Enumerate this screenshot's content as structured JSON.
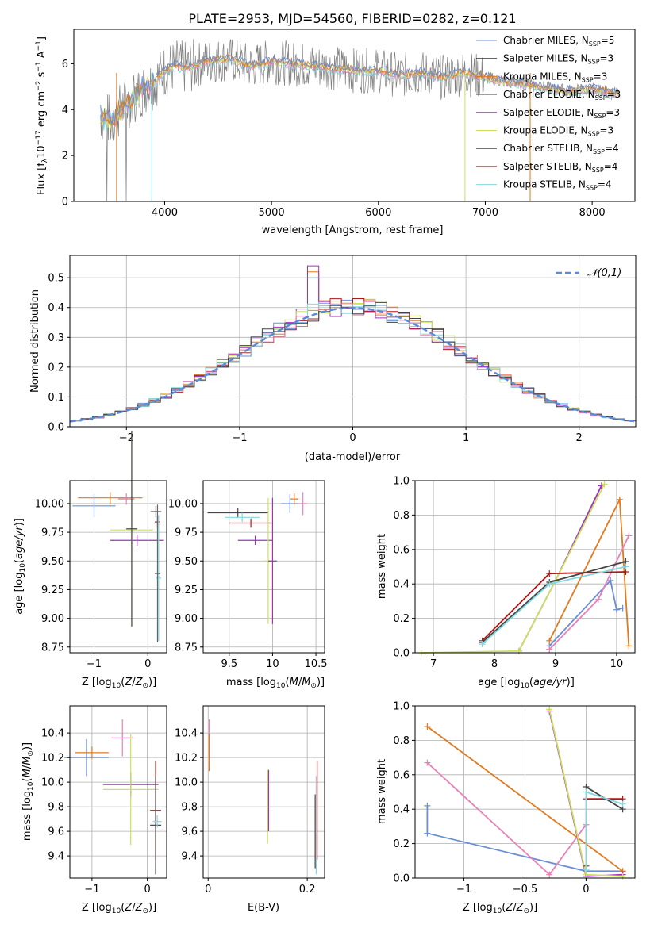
{
  "figure": {
    "title": "PLATE=2953, MJD=54560, FIBERID=0282, z=0.121"
  },
  "colors": {
    "chabrier_miles": "#6a8fd6",
    "salpeter_miles": "#303030",
    "kroupa_miles": "#e07a20",
    "chabrier_elodie": "#666666",
    "salpeter_elodie": "#a030c0",
    "kroupa_elodie": "#cce060",
    "chabrier_stelib": "#444444",
    "salpeter_stelib": "#b01818",
    "kroupa_stelib": "#80d8e0",
    "pink": "#e880b8",
    "data": "#808080"
  },
  "chart_data": [
    {
      "id": "spectrum",
      "type": "line",
      "xlabel": "wavelength [Angstrom, rest frame]",
      "ylabel": "Flux [f_λ 10^-17 erg cm^-2 s^-1 A^-1]",
      "xlim": [
        3150,
        8400
      ],
      "ylim": [
        0,
        7.5
      ],
      "xticks": [
        4000,
        5000,
        6000,
        7000,
        8000
      ],
      "yticks": [
        0,
        2,
        4,
        6
      ],
      "grid": false,
      "legend_position": "top-right",
      "legend": [
        {
          "main": "Chabrier MILES, N",
          "sub": "SSP",
          "tail": "=5"
        },
        {
          "main": "Salpeter MILES, N",
          "sub": "SSP",
          "tail": "=3"
        },
        {
          "main": "Kroupa MILES, N",
          "sub": "SSP",
          "tail": "=3"
        },
        {
          "main": "Chabrier ELODIE, N",
          "sub": "SSP",
          "tail": "=3"
        },
        {
          "main": "Salpeter ELODIE, N",
          "sub": "SSP",
          "tail": "=3"
        },
        {
          "main": "Kroupa ELODIE, N",
          "sub": "SSP",
          "tail": "=3"
        },
        {
          "main": "Chabrier STELIB, N",
          "sub": "SSP",
          "tail": "=4"
        },
        {
          "main": "Salpeter STELIB, N",
          "sub": "SSP",
          "tail": "=4"
        },
        {
          "main": "Kroupa STELIB, N",
          "sub": "SSP",
          "tail": "=4"
        }
      ],
      "series": [
        {
          "x": [
            3400,
            3500,
            3600,
            3700,
            3800,
            3900,
            4000,
            4100,
            4200,
            4400,
            4600,
            4800,
            5000,
            5200,
            5400,
            5600,
            5800,
            6000,
            6200,
            6400,
            6600,
            6800,
            7000,
            7200,
            7400,
            7600,
            7800,
            8000,
            8200
          ],
          "y": [
            3.8,
            3.5,
            4.1,
            4.5,
            4.9,
            5.2,
            5.7,
            5.9,
            5.8,
            6.1,
            6.2,
            5.9,
            6.1,
            6.0,
            5.9,
            5.8,
            5.7,
            5.7,
            5.5,
            5.6,
            5.4,
            5.6,
            5.4,
            5.2,
            5.1,
            4.9,
            4.8,
            4.9,
            4.7
          ]
        }
      ]
    },
    {
      "id": "residuals",
      "type": "line",
      "xlabel": "(data-model)/error",
      "ylabel": "Normed distribution",
      "xlim": [
        -2.5,
        2.5
      ],
      "ylim": [
        0,
        0.575
      ],
      "xticks": [
        -2,
        -1,
        0,
        1,
        2
      ],
      "yticks": [
        0.0,
        0.1,
        0.2,
        0.3,
        0.4,
        0.5
      ],
      "grid": true,
      "legend_position": "top-right",
      "legend": [
        "𝒩(0,1)"
      ],
      "series": [
        {
          "x": [
            -2.4,
            -2.2,
            -2.0,
            -1.8,
            -1.6,
            -1.4,
            -1.2,
            -1.0,
            -0.8,
            -0.6,
            -0.4,
            -0.2,
            0.0,
            0.2,
            0.4,
            0.6,
            0.8,
            1.0,
            1.2,
            1.4,
            1.6,
            1.8,
            2.0,
            2.2,
            2.4
          ],
          "y": [
            0.02,
            0.03,
            0.05,
            0.07,
            0.1,
            0.13,
            0.18,
            0.24,
            0.29,
            0.34,
            0.42,
            0.38,
            0.39,
            0.38,
            0.36,
            0.34,
            0.3,
            0.24,
            0.18,
            0.15,
            0.11,
            0.08,
            0.05,
            0.03,
            0.02
          ]
        }
      ]
    },
    {
      "id": "age-Z",
      "type": "scatter",
      "xlabel": "Z [log10(Z/Z⊙)]",
      "ylabel": "age [log10(age/yr)]",
      "xlim": [
        -1.45,
        0.35
      ],
      "ylim": [
        8.7,
        10.2
      ],
      "xticks": [
        -1,
        0
      ],
      "yticks": [
        8.75,
        9.0,
        9.25,
        9.5,
        9.75,
        10.0
      ],
      "grid": true,
      "points": [
        {
          "x": -1.0,
          "y": 9.98,
          "xerr": 0.4,
          "yerr": 0.1,
          "c": "chabrier_miles"
        },
        {
          "x": -0.7,
          "y": 10.05,
          "xerr": 0.6,
          "yerr": 0.05,
          "c": "kroupa_miles"
        },
        {
          "x": -0.4,
          "y": 10.04,
          "xerr": 0.15,
          "yerr": 0.05,
          "c": "pink"
        },
        {
          "x": -0.3,
          "y": 9.77,
          "xerr": 0.4,
          "yerr": 0.85,
          "c": "kroupa_elodie"
        },
        {
          "x": -0.3,
          "y": 9.78,
          "xerr": 0.1,
          "yerr": 0.85,
          "c": "chabrier_stelib"
        },
        {
          "x": -0.2,
          "y": 9.68,
          "xerr": 0.5,
          "yerr": 0.05,
          "c": "salpeter_elodie"
        },
        {
          "x": 0.15,
          "y": 9.93,
          "xerr": 0.1,
          "yerr": 0.05,
          "c": "chabrier_stelib"
        },
        {
          "x": 0.18,
          "y": 9.84,
          "xerr": 0.05,
          "yerr": 0.05,
          "c": "salpeter_stelib"
        },
        {
          "x": 0.2,
          "y": 9.35,
          "xerr": 0.05,
          "yerr": 0.55,
          "c": "kroupa_stelib"
        },
        {
          "x": 0.18,
          "y": 9.39,
          "xerr": 0.05,
          "yerr": 0.6,
          "c": "chabrier_elodie"
        }
      ]
    },
    {
      "id": "age-mass",
      "type": "scatter",
      "xlabel": "mass [log10(M/M⊙)]",
      "ylabel": "",
      "xlim": [
        9.2,
        10.6
      ],
      "ylim": [
        8.7,
        10.2
      ],
      "xticks": [
        9.5,
        10.0,
        10.5
      ],
      "yticks": [
        8.75,
        9.0,
        9.25,
        9.5,
        9.75,
        10.0
      ],
      "grid": true,
      "points": [
        {
          "x": 9.6,
          "y": 9.92,
          "xerr": 0.35,
          "yerr": 0.04,
          "c": "chabrier_stelib"
        },
        {
          "x": 9.65,
          "y": 9.88,
          "xerr": 0.2,
          "yerr": 0.04,
          "c": "kroupa_stelib"
        },
        {
          "x": 9.75,
          "y": 9.83,
          "xerr": 0.25,
          "yerr": 0.04,
          "c": "salpeter_stelib"
        },
        {
          "x": 9.8,
          "y": 9.68,
          "xerr": 0.2,
          "yerr": 0.04,
          "c": "salpeter_elodie"
        },
        {
          "x": 9.95,
          "y": 9.5,
          "xerr": 0.05,
          "yerr": 0.55,
          "c": "kroupa_elodie"
        },
        {
          "x": 10.0,
          "y": 9.5,
          "xerr": 0.05,
          "yerr": 0.55,
          "c": "salpeter_elodie"
        },
        {
          "x": 10.2,
          "y": 10.0,
          "xerr": 0.1,
          "yerr": 0.08,
          "c": "chabrier_miles"
        },
        {
          "x": 10.25,
          "y": 10.04,
          "xerr": 0.05,
          "yerr": 0.05,
          "c": "kroupa_miles"
        },
        {
          "x": 10.35,
          "y": 10.0,
          "xerr": 0.05,
          "yerr": 0.1,
          "c": "pink"
        }
      ]
    },
    {
      "id": "weights-age",
      "type": "line",
      "xlabel": "age [log10(age/yr)]",
      "ylabel": "mass weight",
      "xlim": [
        6.7,
        10.3
      ],
      "ylim": [
        0.0,
        1.0
      ],
      "xticks": [
        7,
        8,
        9,
        10
      ],
      "yticks": [
        0.0,
        0.2,
        0.4,
        0.6,
        0.8,
        1.0
      ],
      "grid": true,
      "series": [
        {
          "c": "chabrier_miles",
          "x": [
            8.9,
            9.9,
            10.0,
            10.1
          ],
          "y": [
            0.04,
            0.42,
            0.25,
            0.26
          ]
        },
        {
          "c": "kroupa_miles",
          "x": [
            8.9,
            10.05,
            10.2
          ],
          "y": [
            0.07,
            0.89,
            0.04
          ]
        },
        {
          "c": "pink",
          "x": [
            8.9,
            9.7,
            10.2
          ],
          "y": [
            0.02,
            0.31,
            0.68
          ]
        },
        {
          "c": "salpeter_elodie",
          "x": [
            8.4,
            9.0,
            9.75
          ],
          "y": [
            0.01,
            0.42,
            0.97
          ]
        },
        {
          "c": "kroupa_elodie",
          "x": [
            6.8,
            8.4,
            9.0,
            9.8
          ],
          "y": [
            0.0,
            0.01,
            0.42,
            0.98
          ]
        },
        {
          "c": "salpeter_stelib",
          "x": [
            7.8,
            8.9,
            10.15
          ],
          "y": [
            0.07,
            0.46,
            0.47
          ]
        },
        {
          "c": "chabrier_stelib",
          "x": [
            7.8,
            8.9,
            10.15
          ],
          "y": [
            0.06,
            0.41,
            0.53
          ]
        },
        {
          "c": "kroupa_stelib",
          "x": [
            7.8,
            8.9,
            10.15
          ],
          "y": [
            0.05,
            0.4,
            0.5
          ]
        }
      ]
    },
    {
      "id": "mass-Z",
      "type": "scatter",
      "xlabel": "Z [log10(Z/Z⊙)]",
      "ylabel": "mass [log10(M/M⊙)]",
      "xlim": [
        -1.4,
        0.35
      ],
      "ylim": [
        9.22,
        10.62
      ],
      "xticks": [
        -1,
        0
      ],
      "yticks": [
        9.4,
        9.6,
        9.8,
        10.0,
        10.2,
        10.4
      ],
      "grid": true,
      "points": [
        {
          "x": -1.1,
          "y": 10.2,
          "xerr": 0.4,
          "yerr": 0.15,
          "c": "chabrier_miles"
        },
        {
          "x": -1.0,
          "y": 10.24,
          "xerr": 0.3,
          "yerr": 0.05,
          "c": "kroupa_miles"
        },
        {
          "x": -0.45,
          "y": 10.36,
          "xerr": 0.2,
          "yerr": 0.15,
          "c": "pink"
        },
        {
          "x": -0.3,
          "y": 9.98,
          "xerr": 0.5,
          "yerr": 0.1,
          "c": "salpeter_elodie"
        },
        {
          "x": -0.3,
          "y": 9.94,
          "xerr": 0.5,
          "yerr": 0.45,
          "c": "kroupa_elodie"
        },
        {
          "x": 0.15,
          "y": 9.77,
          "xerr": 0.1,
          "yerr": 0.4,
          "c": "salpeter_stelib"
        },
        {
          "x": 0.15,
          "y": 9.65,
          "xerr": 0.1,
          "yerr": 0.4,
          "c": "chabrier_stelib"
        },
        {
          "x": 0.18,
          "y": 9.68,
          "xerr": 0.08,
          "yerr": 0.05,
          "c": "kroupa_stelib"
        }
      ]
    },
    {
      "id": "mass-EBV",
      "type": "scatter",
      "xlabel": "E(B-V)",
      "ylabel": "",
      "xlim": [
        -0.01,
        0.235
      ],
      "ylim": [
        9.22,
        10.62
      ],
      "xticks": [
        0.0,
        0.2
      ],
      "yticks": [
        9.4,
        9.6,
        9.8,
        10.0,
        10.2,
        10.4
      ],
      "grid": true,
      "points": [
        {
          "x": 0.002,
          "y": 10.36,
          "xerr": 0.0,
          "yerr": 0.15,
          "c": "pink"
        },
        {
          "x": 0.002,
          "y": 10.24,
          "xerr": 0.0,
          "yerr": 0.15,
          "c": "kroupa_miles"
        },
        {
          "x": 0.12,
          "y": 9.8,
          "xerr": 0.0,
          "yerr": 0.3,
          "c": "kroupa_elodie"
        },
        {
          "x": 0.122,
          "y": 9.85,
          "xerr": 0.0,
          "yerr": 0.25,
          "c": "salpeter_elodie"
        },
        {
          "x": 0.22,
          "y": 9.77,
          "xerr": 0.0,
          "yerr": 0.4,
          "c": "salpeter_stelib"
        },
        {
          "x": 0.218,
          "y": 9.65,
          "xerr": 0.0,
          "yerr": 0.4,
          "c": "kroupa_stelib"
        },
        {
          "x": 0.216,
          "y": 9.6,
          "xerr": 0.0,
          "yerr": 0.3,
          "c": "chabrier_stelib"
        }
      ]
    },
    {
      "id": "weights-Z",
      "type": "line",
      "xlabel": "Z [log10(Z/Z⊙)]",
      "ylabel": "mass weight",
      "xlim": [
        -1.4,
        0.4
      ],
      "ylim": [
        0.0,
        1.0
      ],
      "xticks": [
        -1.0,
        -0.5,
        0.0
      ],
      "yticks": [
        0.0,
        0.2,
        0.4,
        0.6,
        0.8,
        1.0
      ],
      "grid": true,
      "series": [
        {
          "c": "chabrier_miles",
          "x": [
            -1.3,
            -1.3,
            0.0,
            0.0,
            0.3
          ],
          "y": [
            0.42,
            0.26,
            0.04,
            0.04,
            0.04
          ]
        },
        {
          "c": "kroupa_miles",
          "x": [
            -1.3,
            0.3
          ],
          "y": [
            0.88,
            0.04
          ]
        },
        {
          "c": "pink",
          "x": [
            -1.3,
            -0.3,
            0.0
          ],
          "y": [
            0.67,
            0.02,
            0.31
          ]
        },
        {
          "c": "salpeter_elodie",
          "x": [
            -0.3,
            0.0,
            0.3
          ],
          "y": [
            0.97,
            0.01,
            0.02
          ]
        },
        {
          "c": "kroupa_elodie",
          "x": [
            -0.3,
            0.0,
            0.3
          ],
          "y": [
            0.98,
            0.02,
            0.01
          ]
        },
        {
          "c": "salpeter_stelib",
          "x": [
            0.0,
            0.0,
            0.3
          ],
          "y": [
            0.07,
            0.46,
            0.46
          ]
        },
        {
          "c": "chabrier_stelib",
          "x": [
            0.0,
            0.3
          ],
          "y": [
            0.53,
            0.4
          ]
        },
        {
          "c": "kroupa_stelib",
          "x": [
            0.0,
            0.0,
            0.3
          ],
          "y": [
            0.05,
            0.5,
            0.43
          ]
        }
      ]
    }
  ]
}
